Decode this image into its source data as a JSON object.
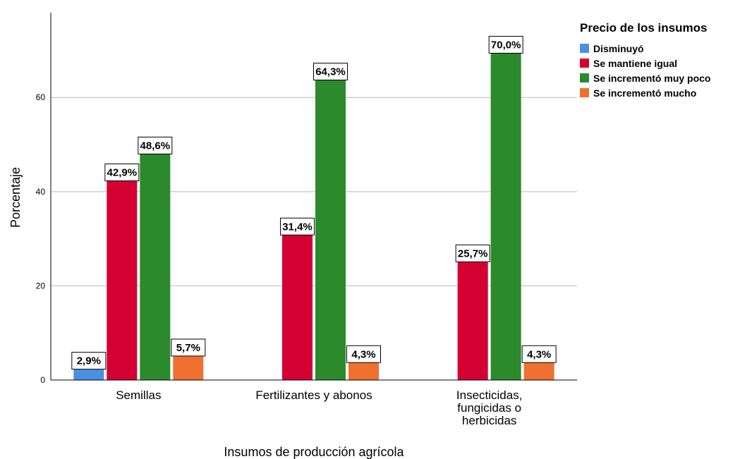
{
  "chart_data": {
    "type": "bar",
    "categories": [
      [
        "Semillas"
      ],
      [
        "Fertilizantes y abonos"
      ],
      [
        "Insecticidas,",
        "fungicidas o",
        "herbicidas"
      ]
    ],
    "series": [
      {
        "name": "Disminuyó",
        "color": "#4a90e2",
        "values": [
          2.9,
          null,
          null
        ],
        "labels": [
          "2,9%",
          "",
          ""
        ]
      },
      {
        "name": "Se mantiene igual",
        "color": "#d50032",
        "values": [
          42.9,
          31.4,
          25.7
        ],
        "labels": [
          "42,9%",
          "31,4%",
          "25,7%"
        ]
      },
      {
        "name": "Se incrementó muy poco",
        "color": "#2b8a2b",
        "values": [
          48.6,
          64.3,
          70.0
        ],
        "labels": [
          "48,6%",
          "64,3%",
          "70,0%"
        ]
      },
      {
        "name": "Se incrementó mucho",
        "color": "#f07030",
        "values": [
          5.7,
          4.3,
          4.3
        ],
        "labels": [
          "5,7%",
          "4,3%",
          "4,3%"
        ]
      }
    ],
    "xlabel": "Insumos de producción agrícola",
    "ylabel": "Porcentaje",
    "ylim": [
      0,
      78
    ],
    "yticks": [
      0,
      20,
      40,
      60
    ],
    "grid": true,
    "legend": {
      "title": "Precio de los insumos",
      "position": "top-right"
    }
  }
}
